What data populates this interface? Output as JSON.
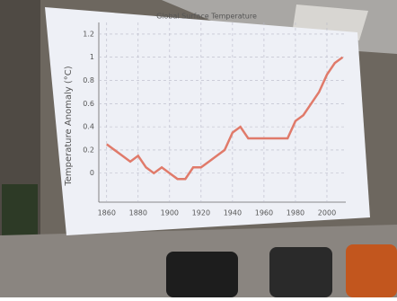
{
  "chart_data": {
    "type": "line",
    "title": "Global Surface Temperature",
    "y_label": "Temperature Anomaly (°C)",
    "x": [
      1860,
      1865,
      1870,
      1875,
      1880,
      1885,
      1890,
      1895,
      1900,
      1905,
      1910,
      1915,
      1920,
      1925,
      1930,
      1935,
      1940,
      1945,
      1950,
      1955,
      1960,
      1965,
      1970,
      1975,
      1980,
      1985,
      1990,
      1995,
      2000,
      2005,
      2010
    ],
    "values": [
      0.25,
      0.2,
      0.15,
      0.1,
      0.15,
      0.05,
      0.0,
      0.05,
      0.0,
      -0.05,
      -0.05,
      0.05,
      0.05,
      0.1,
      0.15,
      0.2,
      0.35,
      0.4,
      0.3,
      0.3,
      0.3,
      0.3,
      0.3,
      0.3,
      0.45,
      0.5,
      0.6,
      0.7,
      0.85,
      0.95,
      1.0
    ],
    "color": "#e07a6a",
    "xlim": [
      1855,
      2012
    ],
    "xticks": [
      1860,
      1880,
      1900,
      1920,
      1940,
      1960,
      1980,
      2000
    ],
    "ylim": [
      -0.25,
      1.3
    ],
    "yticks": [
      0,
      0.2,
      0.4,
      0.6,
      0.8,
      1,
      1.2
    ],
    "grid": true
  }
}
